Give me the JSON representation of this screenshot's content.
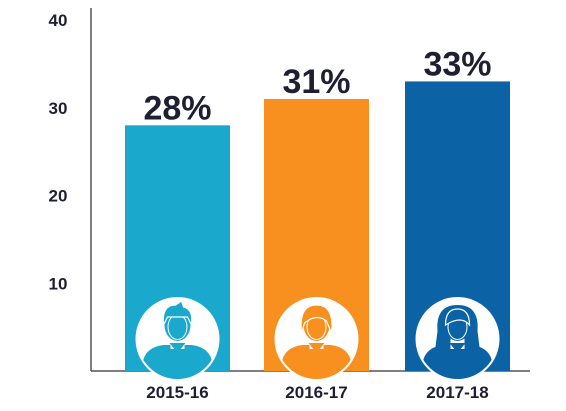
{
  "chart_data": {
    "type": "bar",
    "categories": [
      "2015-16",
      "2016-17",
      "2017-18"
    ],
    "values": [
      28,
      31,
      33
    ],
    "data_labels": [
      "28%",
      "31%",
      "33%"
    ],
    "yticks": [
      "10",
      "20",
      "30",
      "40"
    ],
    "ytick_values": [
      10,
      20,
      30,
      40
    ],
    "ylim": [
      0,
      40
    ],
    "grid": false,
    "colors": [
      "#1aa9cc",
      "#f7901e",
      "#0b63a6"
    ],
    "icons": [
      "person-short-hair-icon",
      "person-medium-hair-icon",
      "person-long-hair-icon"
    ]
  }
}
